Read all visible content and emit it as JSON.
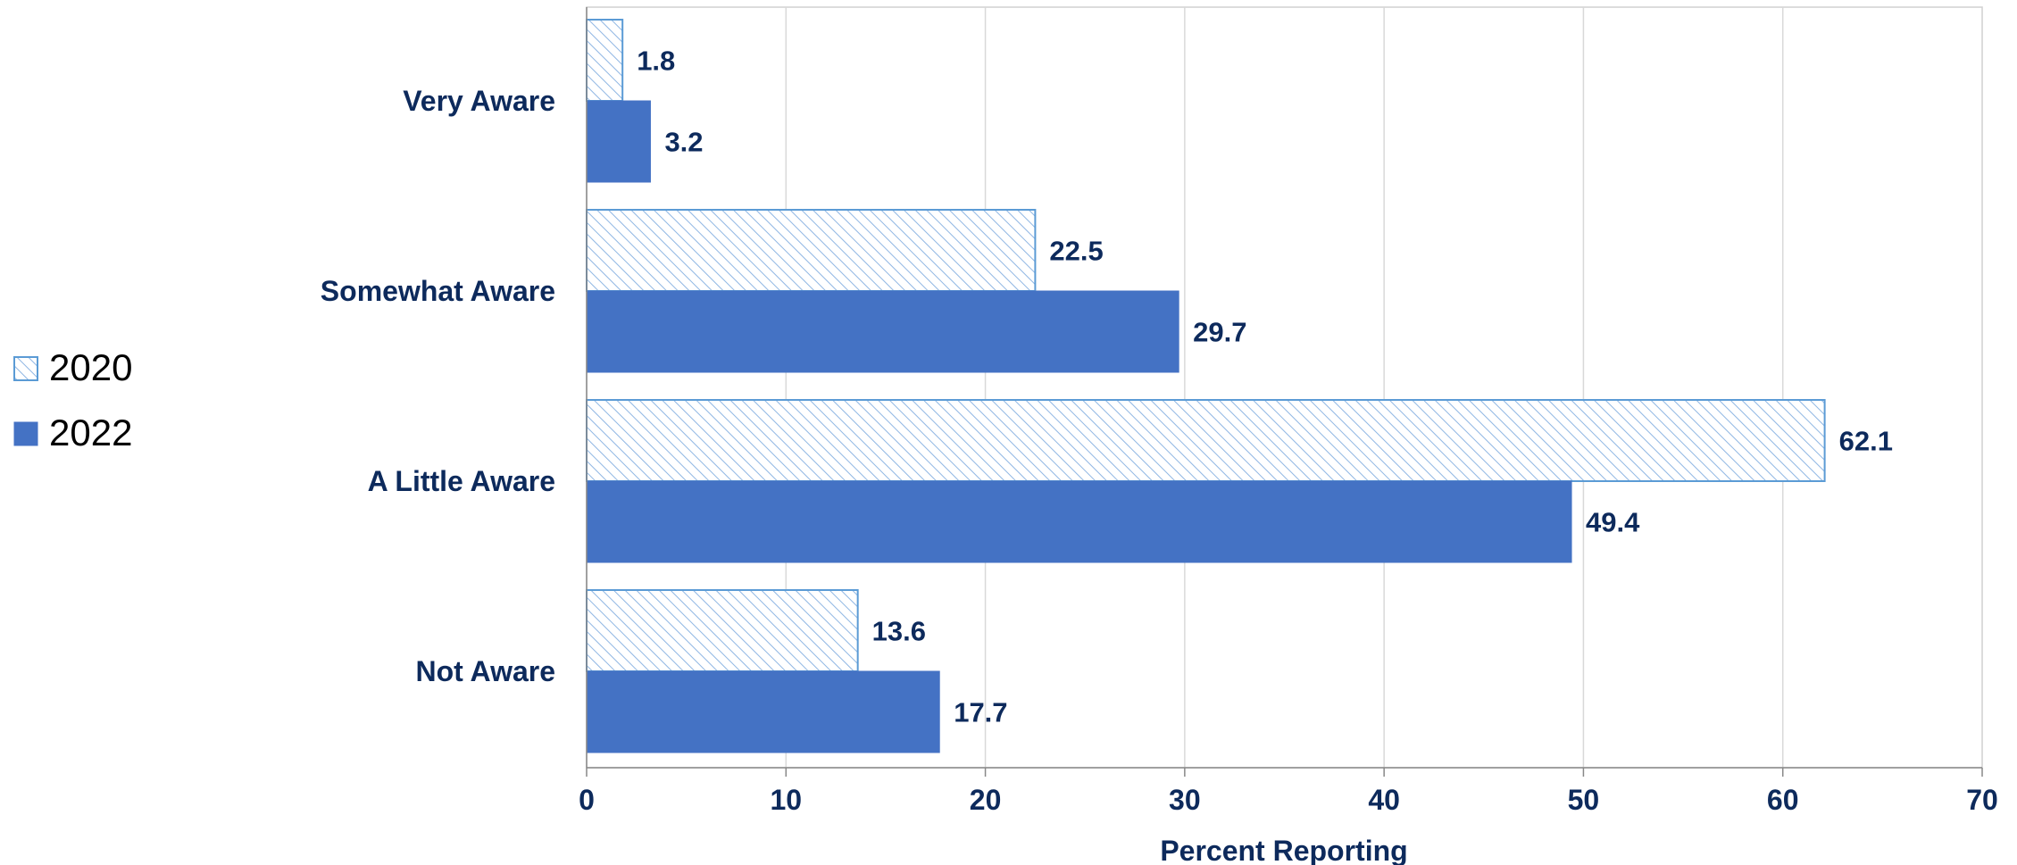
{
  "chart_data": {
    "type": "bar",
    "orientation": "horizontal",
    "categories": [
      "Very Aware",
      "Somewhat Aware",
      "A Little Aware",
      "Not Aware"
    ],
    "series": [
      {
        "name": "2020",
        "values": [
          1.8,
          22.5,
          62.1,
          13.6
        ],
        "style": "hatched",
        "color": "#5b9bd5"
      },
      {
        "name": "2022",
        "values": [
          3.2,
          29.7,
          49.4,
          17.7
        ],
        "style": "solid",
        "color": "#4472c4"
      }
    ],
    "xlabel": "Percent Reporting",
    "xlim": [
      0,
      70
    ],
    "xticks": [
      0,
      10,
      20,
      30,
      40,
      50,
      60,
      70
    ],
    "grid": true,
    "legend_position": "left"
  }
}
